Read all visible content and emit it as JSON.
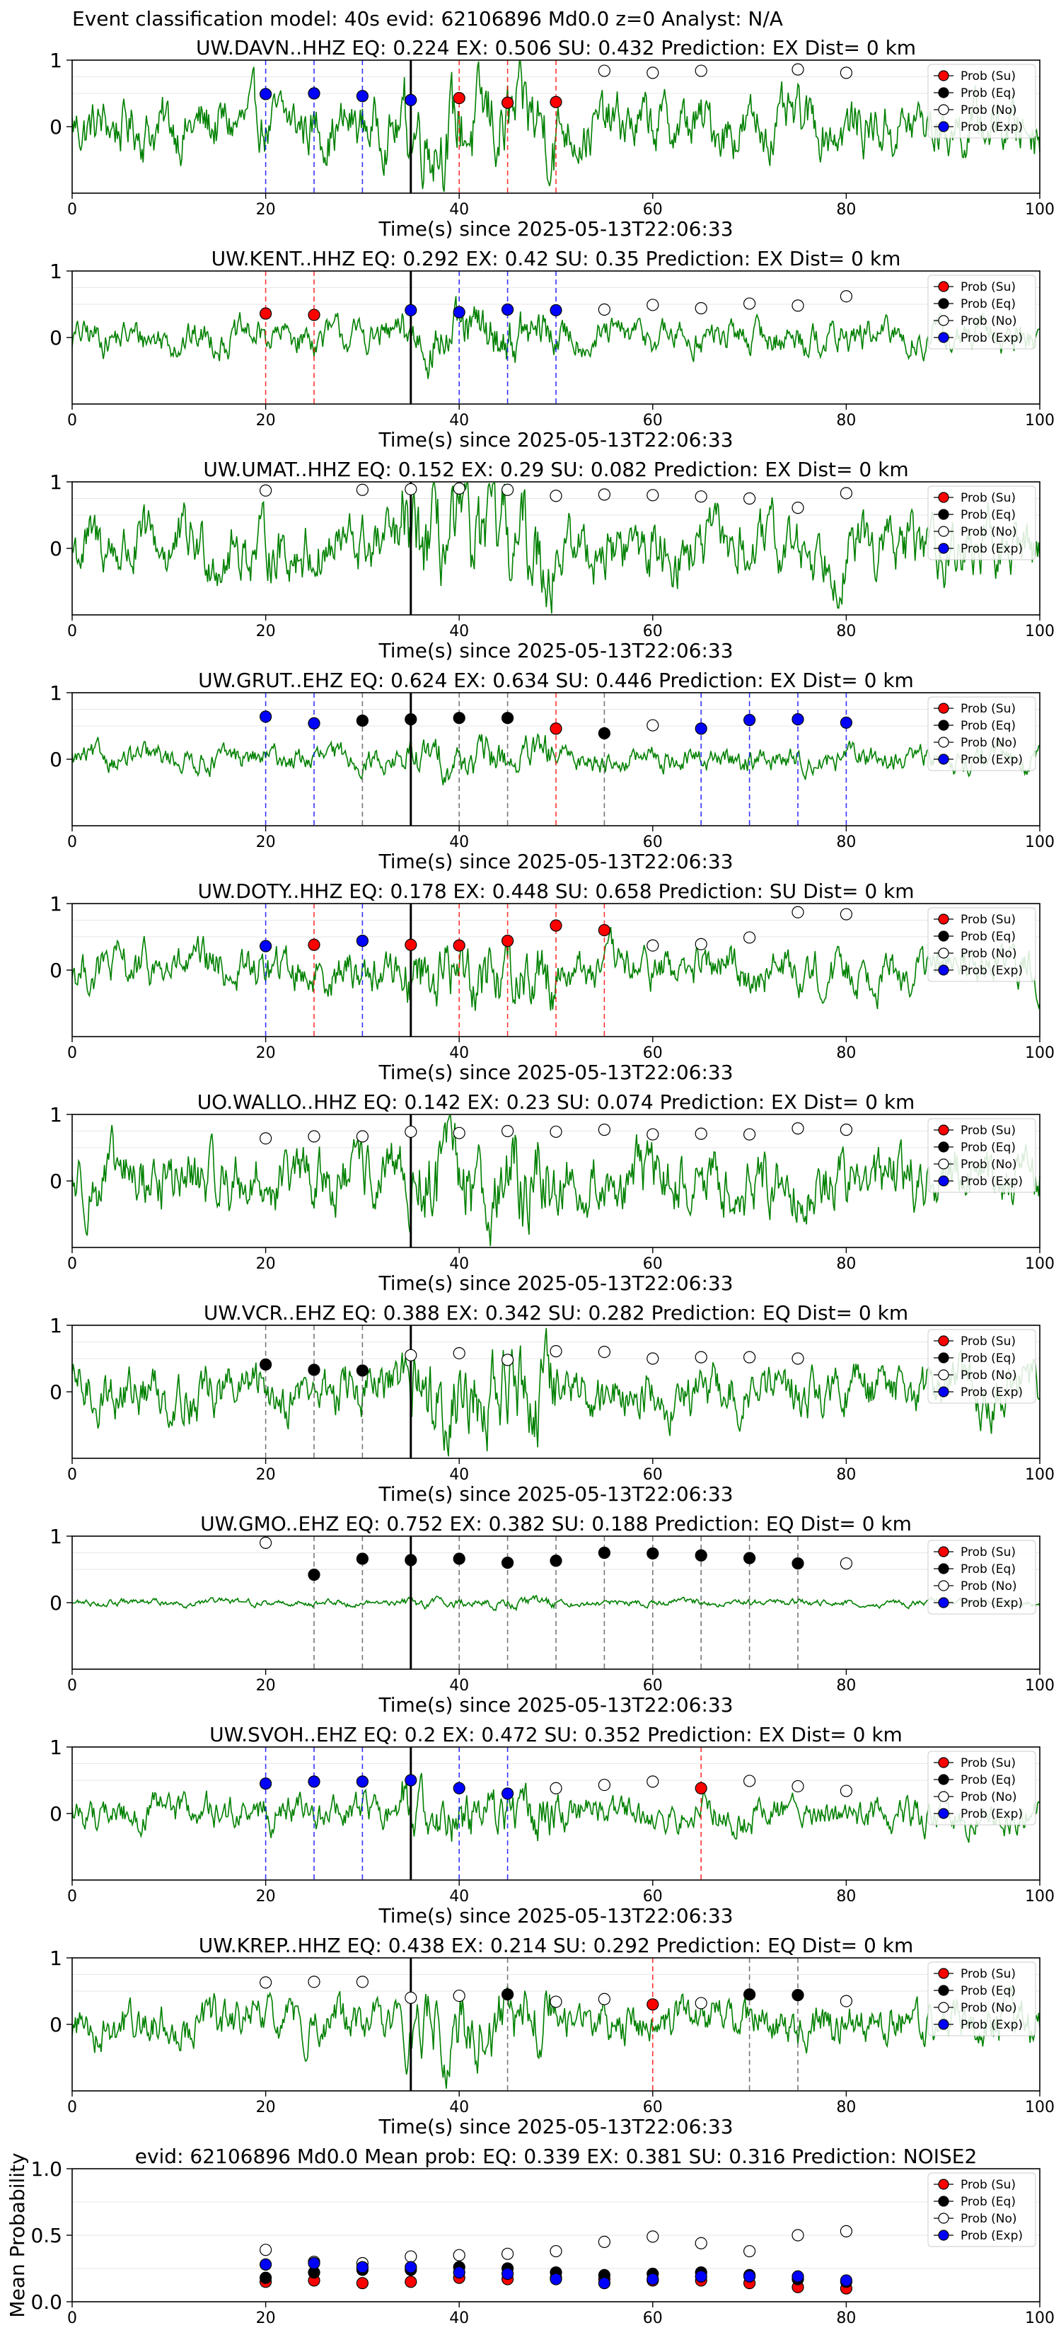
{
  "figure_title": "Event classification model: 40s evid: 62106896 Md0.0 z=0 Analyst: N/A",
  "legend_labels": [
    "Prob (Su)",
    "Prob (Eq)",
    "Prob (No)",
    "Prob (Exp)"
  ],
  "colors": {
    "su": "#ff0000",
    "eq": "#000000",
    "no": "#ffffff",
    "exp": "#0000ff",
    "waveform": "#008000",
    "axis": "#000000",
    "grid": "#e6e6e6"
  },
  "chart_data": [
    {
      "type": "line",
      "title": "UW.DAVN..HHZ    EQ: 0.224  EX: 0.506  SU: 0.432   Prediction: EX    Dist= 0 km",
      "xlabel": "Time(s) since 2025-05-13T22:06:33",
      "xlim": [
        0,
        100
      ],
      "ylim": [
        -1,
        1
      ],
      "xticks": [
        0,
        20,
        40,
        60,
        80,
        100
      ],
      "yticks": [
        0,
        1
      ],
      "pick_time": 35,
      "amp": 0.6,
      "legend_position": "top-right",
      "points": [
        {
          "x": 20,
          "y": 0.49,
          "c": "exp"
        },
        {
          "x": 25,
          "y": 0.5,
          "c": "exp"
        },
        {
          "x": 30,
          "y": 0.46,
          "c": "exp"
        },
        {
          "x": 35,
          "y": 0.4,
          "c": "exp"
        },
        {
          "x": 40,
          "y": 0.43,
          "c": "su"
        },
        {
          "x": 45,
          "y": 0.36,
          "c": "su"
        },
        {
          "x": 50,
          "y": 0.37,
          "c": "su"
        },
        {
          "x": 55,
          "y": 0.84,
          "c": "no"
        },
        {
          "x": 60,
          "y": 0.81,
          "c": "no"
        },
        {
          "x": 65,
          "y": 0.84,
          "c": "no"
        },
        {
          "x": 75,
          "y": 0.86,
          "c": "no"
        },
        {
          "x": 80,
          "y": 0.81,
          "c": "no"
        }
      ]
    },
    {
      "type": "line",
      "title": "UW.KENT..HHZ   EQ: 0.292  EX: 0.42  SU: 0.35   Prediction: EX    Dist= 0 km",
      "xlabel": "Time(s) since 2025-05-13T22:06:33",
      "xlim": [
        0,
        100
      ],
      "ylim": [
        -1,
        1
      ],
      "xticks": [
        0,
        20,
        40,
        60,
        80,
        100
      ],
      "yticks": [
        0,
        1
      ],
      "pick_time": 35,
      "amp": 0.35,
      "legend_position": "top-right",
      "points": [
        {
          "x": 20,
          "y": 0.36,
          "c": "su"
        },
        {
          "x": 25,
          "y": 0.34,
          "c": "su"
        },
        {
          "x": 35,
          "y": 0.41,
          "c": "exp"
        },
        {
          "x": 40,
          "y": 0.38,
          "c": "exp"
        },
        {
          "x": 45,
          "y": 0.42,
          "c": "exp"
        },
        {
          "x": 50,
          "y": 0.41,
          "c": "exp"
        },
        {
          "x": 55,
          "y": 0.42,
          "c": "no"
        },
        {
          "x": 60,
          "y": 0.49,
          "c": "no"
        },
        {
          "x": 65,
          "y": 0.44,
          "c": "no"
        },
        {
          "x": 70,
          "y": 0.51,
          "c": "no"
        },
        {
          "x": 75,
          "y": 0.48,
          "c": "no"
        },
        {
          "x": 80,
          "y": 0.62,
          "c": "no"
        }
      ]
    },
    {
      "type": "line",
      "title": "UW.UMAT..HHZ   EQ: 0.152  EX: 0.29  SU: 0.082   Prediction: EX    Dist= 0 km",
      "xlabel": "Time(s) since 2025-05-13T22:06:33",
      "xlim": [
        0,
        100
      ],
      "ylim": [
        -1,
        1
      ],
      "xticks": [
        0,
        20,
        40,
        60,
        80,
        100
      ],
      "yticks": [
        0,
        1
      ],
      "pick_time": 35,
      "amp": 0.65,
      "legend_position": "top-right",
      "points": [
        {
          "x": 20,
          "y": 0.87,
          "c": "no"
        },
        {
          "x": 30,
          "y": 0.88,
          "c": "no"
        },
        {
          "x": 35,
          "y": 0.89,
          "c": "no"
        },
        {
          "x": 40,
          "y": 0.9,
          "c": "no"
        },
        {
          "x": 45,
          "y": 0.88,
          "c": "no"
        },
        {
          "x": 50,
          "y": 0.79,
          "c": "no"
        },
        {
          "x": 55,
          "y": 0.81,
          "c": "no"
        },
        {
          "x": 60,
          "y": 0.8,
          "c": "no"
        },
        {
          "x": 65,
          "y": 0.78,
          "c": "no"
        },
        {
          "x": 70,
          "y": 0.75,
          "c": "no"
        },
        {
          "x": 75,
          "y": 0.61,
          "c": "no"
        },
        {
          "x": 80,
          "y": 0.83,
          "c": "no"
        }
      ]
    },
    {
      "type": "line",
      "title": "UW.GRUT..EHZ   EQ: 0.624  EX: 0.634  SU: 0.446   Prediction: EX    Dist= 0 km",
      "xlabel": "Time(s) since 2025-05-13T22:06:33",
      "xlim": [
        0,
        100
      ],
      "ylim": [
        -1,
        1
      ],
      "xticks": [
        0,
        20,
        40,
        60,
        80,
        100
      ],
      "yticks": [
        0,
        1
      ],
      "pick_time": 35,
      "amp": 0.25,
      "legend_position": "top-right",
      "points": [
        {
          "x": 20,
          "y": 0.64,
          "c": "exp"
        },
        {
          "x": 25,
          "y": 0.54,
          "c": "exp"
        },
        {
          "x": 30,
          "y": 0.58,
          "c": "eq"
        },
        {
          "x": 35,
          "y": 0.6,
          "c": "eq"
        },
        {
          "x": 40,
          "y": 0.62,
          "c": "eq"
        },
        {
          "x": 45,
          "y": 0.62,
          "c": "eq"
        },
        {
          "x": 50,
          "y": 0.46,
          "c": "su"
        },
        {
          "x": 55,
          "y": 0.39,
          "c": "eq"
        },
        {
          "x": 60,
          "y": 0.51,
          "c": "no"
        },
        {
          "x": 65,
          "y": 0.46,
          "c": "exp"
        },
        {
          "x": 70,
          "y": 0.59,
          "c": "exp"
        },
        {
          "x": 75,
          "y": 0.6,
          "c": "exp"
        },
        {
          "x": 80,
          "y": 0.55,
          "c": "exp"
        }
      ]
    },
    {
      "type": "line",
      "title": "UW.DOTY..HHZ   EQ: 0.178  EX: 0.448  SU: 0.658   Prediction: SU    Dist= 0 km",
      "xlabel": "Time(s) since 2025-05-13T22:06:33",
      "xlim": [
        0,
        100
      ],
      "ylim": [
        -1,
        1
      ],
      "xticks": [
        0,
        20,
        40,
        60,
        80,
        100
      ],
      "yticks": [
        0,
        1
      ],
      "pick_time": 35,
      "amp": 0.45,
      "legend_position": "top-right",
      "points": [
        {
          "x": 20,
          "y": 0.36,
          "c": "exp"
        },
        {
          "x": 25,
          "y": 0.38,
          "c": "su"
        },
        {
          "x": 30,
          "y": 0.44,
          "c": "exp"
        },
        {
          "x": 35,
          "y": 0.38,
          "c": "su"
        },
        {
          "x": 40,
          "y": 0.37,
          "c": "su"
        },
        {
          "x": 45,
          "y": 0.44,
          "c": "su"
        },
        {
          "x": 50,
          "y": 0.67,
          "c": "su"
        },
        {
          "x": 55,
          "y": 0.6,
          "c": "su"
        },
        {
          "x": 60,
          "y": 0.37,
          "c": "no"
        },
        {
          "x": 65,
          "y": 0.39,
          "c": "no"
        },
        {
          "x": 70,
          "y": 0.49,
          "c": "no"
        },
        {
          "x": 75,
          "y": 0.87,
          "c": "no"
        },
        {
          "x": 80,
          "y": 0.84,
          "c": "no"
        }
      ]
    },
    {
      "type": "line",
      "title": "UO.WALLO..HHZ   EQ: 0.142  EX: 0.23  SU: 0.074   Prediction: EX    Dist= 0 km",
      "xlabel": "Time(s) since 2025-05-13T22:06:33",
      "xlim": [
        0,
        100
      ],
      "ylim": [
        -1,
        1
      ],
      "xticks": [
        0,
        20,
        40,
        60,
        80,
        100
      ],
      "yticks": [
        0,
        1
      ],
      "pick_time": 35,
      "amp": 0.65,
      "legend_position": "top-right",
      "points": [
        {
          "x": 20,
          "y": 0.64,
          "c": "no"
        },
        {
          "x": 25,
          "y": 0.67,
          "c": "no"
        },
        {
          "x": 30,
          "y": 0.67,
          "c": "no"
        },
        {
          "x": 35,
          "y": 0.74,
          "c": "no"
        },
        {
          "x": 40,
          "y": 0.72,
          "c": "no"
        },
        {
          "x": 45,
          "y": 0.75,
          "c": "no"
        },
        {
          "x": 50,
          "y": 0.74,
          "c": "no"
        },
        {
          "x": 55,
          "y": 0.77,
          "c": "no"
        },
        {
          "x": 60,
          "y": 0.7,
          "c": "no"
        },
        {
          "x": 65,
          "y": 0.71,
          "c": "no"
        },
        {
          "x": 70,
          "y": 0.7,
          "c": "no"
        },
        {
          "x": 75,
          "y": 0.79,
          "c": "no"
        },
        {
          "x": 80,
          "y": 0.77,
          "c": "no"
        }
      ]
    },
    {
      "type": "line",
      "title": "UW.VCR..EHZ   EQ: 0.388  EX: 0.342  SU: 0.282   Prediction: EQ    Dist= 0 km",
      "xlabel": "Time(s) since 2025-05-13T22:06:33",
      "xlim": [
        0,
        100
      ],
      "ylim": [
        -1,
        1
      ],
      "xticks": [
        0,
        20,
        40,
        60,
        80,
        100
      ],
      "yticks": [
        0,
        1
      ],
      "pick_time": 35,
      "amp": 0.55,
      "legend_position": "top-right",
      "points": [
        {
          "x": 20,
          "y": 0.41,
          "c": "eq"
        },
        {
          "x": 25,
          "y": 0.33,
          "c": "eq"
        },
        {
          "x": 30,
          "y": 0.32,
          "c": "eq"
        },
        {
          "x": 35,
          "y": 0.55,
          "c": "no"
        },
        {
          "x": 40,
          "y": 0.58,
          "c": "no"
        },
        {
          "x": 45,
          "y": 0.48,
          "c": "no"
        },
        {
          "x": 50,
          "y": 0.61,
          "c": "no"
        },
        {
          "x": 55,
          "y": 0.6,
          "c": "no"
        },
        {
          "x": 60,
          "y": 0.5,
          "c": "no"
        },
        {
          "x": 65,
          "y": 0.52,
          "c": "no"
        },
        {
          "x": 70,
          "y": 0.52,
          "c": "no"
        },
        {
          "x": 75,
          "y": 0.5,
          "c": "no"
        }
      ]
    },
    {
      "type": "line",
      "title": "UW.GMO..EHZ   EQ: 0.752  EX: 0.382  SU: 0.188   Prediction: EQ    Dist= 0 km",
      "xlabel": "Time(s) since 2025-05-13T22:06:33",
      "xlim": [
        0,
        100
      ],
      "ylim": [
        -1,
        1
      ],
      "xticks": [
        0,
        20,
        40,
        60,
        80,
        100
      ],
      "yticks": [
        0,
        1
      ],
      "pick_time": 35,
      "amp": 0.07,
      "legend_position": "top-right",
      "points": [
        {
          "x": 20,
          "y": 0.9,
          "c": "no"
        },
        {
          "x": 25,
          "y": 0.42,
          "c": "eq"
        },
        {
          "x": 30,
          "y": 0.66,
          "c": "eq"
        },
        {
          "x": 35,
          "y": 0.64,
          "c": "eq"
        },
        {
          "x": 40,
          "y": 0.66,
          "c": "eq"
        },
        {
          "x": 45,
          "y": 0.6,
          "c": "eq"
        },
        {
          "x": 50,
          "y": 0.63,
          "c": "eq"
        },
        {
          "x": 55,
          "y": 0.75,
          "c": "eq"
        },
        {
          "x": 60,
          "y": 0.74,
          "c": "eq"
        },
        {
          "x": 65,
          "y": 0.71,
          "c": "eq"
        },
        {
          "x": 70,
          "y": 0.67,
          "c": "eq"
        },
        {
          "x": 75,
          "y": 0.59,
          "c": "eq"
        },
        {
          "x": 80,
          "y": 0.59,
          "c": "no"
        }
      ]
    },
    {
      "type": "line",
      "title": "UW.SVOH..EHZ   EQ: 0.2  EX: 0.472  SU: 0.352   Prediction: EX    Dist= 0 km",
      "xlabel": "Time(s) since 2025-05-13T22:06:33",
      "xlim": [
        0,
        100
      ],
      "ylim": [
        -1,
        1
      ],
      "xticks": [
        0,
        20,
        40,
        60,
        80,
        100
      ],
      "yticks": [
        0,
        1
      ],
      "pick_time": 35,
      "amp": 0.35,
      "legend_position": "top-right",
      "points": [
        {
          "x": 20,
          "y": 0.45,
          "c": "exp"
        },
        {
          "x": 25,
          "y": 0.48,
          "c": "exp"
        },
        {
          "x": 30,
          "y": 0.48,
          "c": "exp"
        },
        {
          "x": 35,
          "y": 0.5,
          "c": "exp"
        },
        {
          "x": 40,
          "y": 0.38,
          "c": "exp"
        },
        {
          "x": 45,
          "y": 0.3,
          "c": "exp"
        },
        {
          "x": 50,
          "y": 0.38,
          "c": "no"
        },
        {
          "x": 55,
          "y": 0.43,
          "c": "no"
        },
        {
          "x": 60,
          "y": 0.48,
          "c": "no"
        },
        {
          "x": 65,
          "y": 0.38,
          "c": "su"
        },
        {
          "x": 70,
          "y": 0.49,
          "c": "no"
        },
        {
          "x": 75,
          "y": 0.41,
          "c": "no"
        },
        {
          "x": 80,
          "y": 0.34,
          "c": "no"
        }
      ]
    },
    {
      "type": "line",
      "title": "UW.KREP..HHZ   EQ: 0.438  EX: 0.214  SU: 0.292   Prediction: EQ    Dist= 0 km",
      "xlabel": "Time(s) since 2025-05-13T22:06:33",
      "xlim": [
        0,
        100
      ],
      "ylim": [
        -1,
        1
      ],
      "xticks": [
        0,
        20,
        40,
        60,
        80,
        100
      ],
      "yticks": [
        0,
        1
      ],
      "pick_time": 35,
      "amp": 0.45,
      "legend_position": "top-right",
      "points": [
        {
          "x": 20,
          "y": 0.63,
          "c": "no"
        },
        {
          "x": 25,
          "y": 0.64,
          "c": "no"
        },
        {
          "x": 30,
          "y": 0.64,
          "c": "no"
        },
        {
          "x": 35,
          "y": 0.4,
          "c": "no"
        },
        {
          "x": 40,
          "y": 0.43,
          "c": "no"
        },
        {
          "x": 45,
          "y": 0.45,
          "c": "eq"
        },
        {
          "x": 50,
          "y": 0.34,
          "c": "no"
        },
        {
          "x": 55,
          "y": 0.38,
          "c": "no"
        },
        {
          "x": 60,
          "y": 0.3,
          "c": "su"
        },
        {
          "x": 65,
          "y": 0.32,
          "c": "no"
        },
        {
          "x": 70,
          "y": 0.45,
          "c": "eq"
        },
        {
          "x": 75,
          "y": 0.44,
          "c": "eq"
        },
        {
          "x": 80,
          "y": 0.35,
          "c": "no"
        }
      ]
    },
    {
      "type": "scatter",
      "title": "evid: 62106896  Md0.0   Mean prob:   EQ: 0.339  EX: 0.381  SU: 0.316   Prediction: NOISE2",
      "xlabel": "",
      "ylabel": "Mean Probability",
      "xlim": [
        0,
        100
      ],
      "ylim": [
        0,
        1
      ],
      "xticks": [
        0,
        20,
        40,
        60,
        80,
        100
      ],
      "yticks": [
        0.0,
        0.5,
        1.0
      ],
      "ytick_labels": [
        "0.0",
        "0.5",
        "1.0"
      ],
      "legend_position": "top-right",
      "series": [
        {
          "name": "Prob (Su)",
          "c": "su",
          "x": [
            20,
            25,
            30,
            35,
            40,
            45,
            50,
            55,
            60,
            65,
            70,
            75,
            80
          ],
          "y": [
            0.15,
            0.16,
            0.14,
            0.15,
            0.18,
            0.17,
            0.18,
            0.17,
            0.16,
            0.16,
            0.14,
            0.11,
            0.1
          ]
        },
        {
          "name": "Prob (Eq)",
          "c": "eq",
          "x": [
            20,
            25,
            30,
            35,
            40,
            45,
            50,
            55,
            60,
            65,
            70,
            75,
            80
          ],
          "y": [
            0.18,
            0.22,
            0.24,
            0.24,
            0.26,
            0.25,
            0.22,
            0.2,
            0.21,
            0.22,
            0.2,
            0.17,
            0.15
          ]
        },
        {
          "name": "Prob (No)",
          "c": "no",
          "x": [
            20,
            25,
            30,
            35,
            40,
            45,
            50,
            55,
            60,
            65,
            70,
            75,
            80
          ],
          "y": [
            0.39,
            0.3,
            0.29,
            0.34,
            0.35,
            0.36,
            0.38,
            0.45,
            0.49,
            0.44,
            0.38,
            0.5,
            0.53
          ]
        },
        {
          "name": "Prob (Exp)",
          "c": "exp",
          "x": [
            20,
            25,
            30,
            35,
            40,
            45,
            50,
            55,
            60,
            65,
            70,
            75,
            80
          ],
          "y": [
            0.28,
            0.29,
            0.26,
            0.26,
            0.22,
            0.21,
            0.17,
            0.14,
            0.17,
            0.19,
            0.19,
            0.19,
            0.16
          ]
        }
      ]
    }
  ]
}
